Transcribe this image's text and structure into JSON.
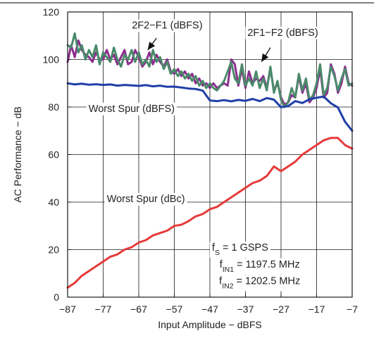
{
  "chart_data": {
    "type": "line",
    "title": "",
    "xlabel": "Input Amplitude − dBFS",
    "ylabel": "AC Performance − dB",
    "xlim": [
      -87,
      -7
    ],
    "ylim": [
      0,
      120
    ],
    "xticks": [
      -87,
      -77,
      -67,
      -57,
      -47,
      -37,
      -27,
      -17,
      -7
    ],
    "yticks": [
      0,
      20,
      40,
      60,
      80,
      100,
      120
    ],
    "grid": true,
    "series": [
      {
        "name": "2F2−F1 (dBFS)",
        "color": "#8b2e8e",
        "x": [
          -87,
          -86,
          -85,
          -84,
          -83,
          -82,
          -81,
          -80,
          -79,
          -78,
          -77,
          -76,
          -75,
          -74,
          -73,
          -72,
          -71,
          -70,
          -69,
          -68,
          -67,
          -66,
          -65,
          -64,
          -63,
          -62,
          -61,
          -60,
          -59,
          -58,
          -57,
          -56,
          -55,
          -54,
          -53,
          -52,
          -51,
          -50,
          -49,
          -48,
          -47,
          -46,
          -45,
          -44,
          -43,
          -42,
          -41,
          -40,
          -39,
          -38,
          -37,
          -36,
          -35,
          -34,
          -33,
          -32,
          -31,
          -30,
          -29,
          -28,
          -27,
          -26,
          -25,
          -24,
          -23,
          -22,
          -21,
          -20,
          -19,
          -18,
          -17,
          -16,
          -15,
          -14,
          -13,
          -12,
          -11,
          -10,
          -9,
          -8,
          -7
        ],
        "y": [
          99,
          106,
          101,
          108,
          104,
          102,
          101,
          99,
          103,
          100,
          100,
          104,
          100,
          102,
          98,
          101,
          104,
          98,
          99,
          104,
          101,
          97,
          99,
          103,
          98,
          102,
          99,
          97,
          100,
          95,
          94,
          96,
          93,
          95,
          92,
          94,
          90,
          92,
          89,
          90,
          88,
          90,
          88,
          89,
          90,
          89,
          100,
          98,
          89,
          96,
          88,
          95,
          90,
          92,
          91,
          93,
          88,
          96,
          87,
          90,
          84,
          81,
          82,
          85,
          84,
          93,
          86,
          90,
          82,
          84,
          88,
          96,
          84,
          86,
          98,
          94,
          86,
          90,
          97,
          90,
          89
        ]
      },
      {
        "name": "2F1−F2 (dBFS)",
        "color": "#4a8a6a",
        "x": [
          -87,
          -86,
          -85,
          -84,
          -83,
          -82,
          -81,
          -80,
          -79,
          -78,
          -77,
          -76,
          -75,
          -74,
          -73,
          -72,
          -71,
          -70,
          -69,
          -68,
          -67,
          -66,
          -65,
          -64,
          -63,
          -62,
          -61,
          -60,
          -59,
          -58,
          -57,
          -56,
          -55,
          -54,
          -53,
          -52,
          -51,
          -50,
          -49,
          -48,
          -47,
          -46,
          -45,
          -44,
          -43,
          -42,
          -41,
          -40,
          -39,
          -38,
          -37,
          -36,
          -35,
          -34,
          -33,
          -32,
          -31,
          -30,
          -29,
          -28,
          -27,
          -26,
          -25,
          -24,
          -23,
          -22,
          -21,
          -20,
          -19,
          -18,
          -17,
          -16,
          -15,
          -14,
          -13,
          -12,
          -11,
          -10,
          -9,
          -8,
          -7
        ],
        "y": [
          106,
          105,
          111,
          103,
          106,
          100,
          104,
          101,
          106,
          98,
          103,
          101,
          99,
          105,
          100,
          97,
          102,
          100,
          104,
          99,
          103,
          98,
          100,
          97,
          104,
          99,
          101,
          96,
          99,
          94,
          96,
          93,
          95,
          92,
          94,
          91,
          93,
          89,
          91,
          88,
          90,
          88,
          87,
          89,
          91,
          95,
          99,
          92,
          90,
          98,
          89,
          92,
          89,
          95,
          88,
          92,
          87,
          97,
          86,
          91,
          83,
          80,
          82,
          88,
          84,
          94,
          87,
          92,
          83,
          85,
          90,
          98,
          85,
          88,
          97,
          93,
          87,
          92,
          96,
          89,
          90
        ]
      },
      {
        "name": "Worst Spur (dBFS)",
        "color": "#1f3fa8",
        "x": [
          -87,
          -85,
          -83,
          -81,
          -79,
          -77,
          -75,
          -73,
          -71,
          -69,
          -67,
          -65,
          -63,
          -61,
          -59,
          -57,
          -55,
          -53,
          -51,
          -49,
          -47,
          -45,
          -43,
          -41,
          -39,
          -37,
          -35,
          -33,
          -31,
          -29,
          -27,
          -25,
          -23,
          -21,
          -19,
          -17,
          -15,
          -13,
          -11,
          -9,
          -7
        ],
        "y": [
          90,
          89.5,
          89.8,
          89.4,
          89.6,
          89.3,
          89.5,
          89,
          89.3,
          89.1,
          88.9,
          89.2,
          88.7,
          89,
          88.5,
          88.6,
          88.2,
          87.8,
          87.6,
          86.9,
          82.8,
          82.5,
          82.9,
          82.4,
          83,
          82.6,
          83.4,
          82.5,
          83.8,
          83.1,
          79.9,
          80.4,
          82.5,
          81.7,
          83.3,
          83.9,
          84.4,
          81.6,
          79.8,
          73.8,
          70
        ]
      },
      {
        "name": "Worst Spur (dBc)",
        "color": "#e63a3a",
        "x": [
          -87,
          -85,
          -83,
          -81,
          -79,
          -77,
          -75,
          -73,
          -71,
          -69,
          -67,
          -65,
          -63,
          -61,
          -59,
          -57,
          -55,
          -53,
          -51,
          -49,
          -47,
          -45,
          -43,
          -41,
          -39,
          -37,
          -35,
          -33,
          -31,
          -29,
          -27,
          -25,
          -23,
          -21,
          -19,
          -17,
          -15,
          -13,
          -11,
          -9,
          -7
        ],
        "y": [
          4,
          6,
          9,
          11,
          13,
          15,
          17,
          18,
          20,
          21,
          23,
          24,
          26,
          27,
          28,
          30,
          30.5,
          32,
          34,
          35,
          37,
          38,
          40,
          42,
          44,
          46,
          48,
          49,
          51,
          55,
          53,
          55,
          57,
          60,
          62,
          64,
          66,
          67,
          67,
          64,
          62.5
        ]
      }
    ],
    "annotations": [
      {
        "text": "2F2−F1 (dBFS)",
        "x": -59,
        "y": 113
      },
      {
        "text": "2F1−F2 (dBFS)",
        "x": -26.5,
        "y": 110
      },
      {
        "text": "Worst Spur (dBFS)",
        "x": -69,
        "y": 78
      },
      {
        "text": "Worst Spur (dBc)",
        "x": -65,
        "y": 40
      },
      {
        "text": "f_S = 1 GSPS",
        "x": -38.5,
        "y": 19.5
      },
      {
        "text": "f_IN1 = 1197.5 MHz",
        "x": -33,
        "y": 12.5
      },
      {
        "text": "f_IN2 = 1202.5 MHz",
        "x": -33,
        "y": 5.5
      }
    ],
    "arrows": [
      {
        "from": [
          -62,
          109
        ],
        "to": [
          -64.5,
          104
        ]
      },
      {
        "from": [
          -30,
          105
        ],
        "to": [
          -32.5,
          99
        ]
      }
    ]
  }
}
